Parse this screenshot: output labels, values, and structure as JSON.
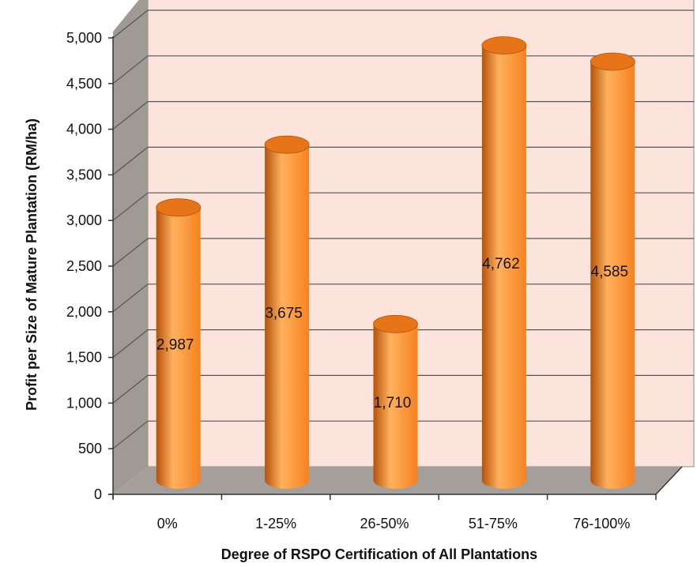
{
  "chart_data": {
    "type": "bar",
    "title": "",
    "xlabel": "Degree of RSPO Certification of All Plantations",
    "ylabel": "Profit per Size of Mature Plantation (RM/ha)",
    "categories": [
      "0%",
      "1-25%",
      "26-50%",
      "51-75%",
      "76-100%"
    ],
    "values": [
      2987,
      3675,
      1710,
      4762,
      4585
    ],
    "data_labels": [
      "2,987",
      "3,675",
      "1,710",
      "4,762",
      "4,585"
    ],
    "ylim": [
      0,
      5000
    ],
    "yticks": [
      0,
      500,
      1000,
      1500,
      2000,
      2500,
      3000,
      3500,
      4000,
      4500,
      5000
    ],
    "ytick_labels": [
      "0",
      "500",
      "1,000",
      "1,500",
      "2,000",
      "2,500",
      "3,000",
      "3,500",
      "4,000",
      "4,500",
      "5,000"
    ],
    "grid": true,
    "legend": "none",
    "style": "3d-cylinder",
    "colors": {
      "bar": "#f58220",
      "bar_light": "#ffb15e",
      "bar_dark": "#b5520a",
      "bar_top": "#e8741a",
      "back_wall": "#fce4dc",
      "side_wall": "#a09a95",
      "floor": "#a49f9a",
      "gridline": "#555555"
    }
  }
}
